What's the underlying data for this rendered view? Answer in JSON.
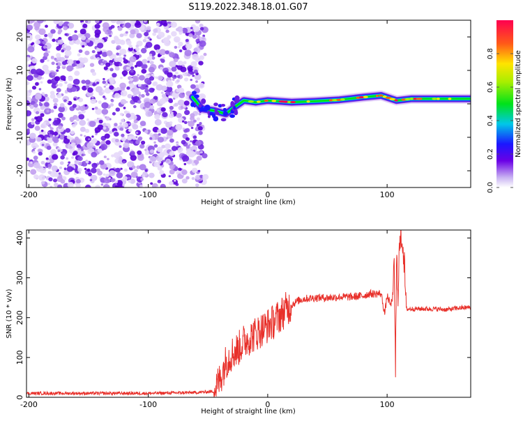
{
  "chart_data": [
    {
      "type": "heatmap",
      "title": "S119.2022.348.18.01.G07",
      "xlabel": "Height of straight line (km)",
      "ylabel": "Frequency (Hz)",
      "xlim": [
        -202,
        170
      ],
      "ylim": [
        -25,
        25
      ],
      "xticks": [
        -200,
        -100,
        0,
        100
      ],
      "yticks": [
        -20,
        -10,
        0,
        10,
        20
      ],
      "colorbar": {
        "label": "Normalized spectral amplitude",
        "range": [
          0,
          1
        ],
        "ticks": [
          0.0,
          0.2,
          0.4,
          0.6,
          0.8
        ]
      },
      "noise_region_x": [
        -202,
        -52
      ],
      "signal_track": [
        {
          "x": -63,
          "f": 2
        },
        {
          "x": -55,
          "f": -1.5
        },
        {
          "x": -45,
          "f": -2
        },
        {
          "x": -35,
          "f": -3
        },
        {
          "x": -28,
          "f": -1
        },
        {
          "x": -20,
          "f": 1
        },
        {
          "x": -10,
          "f": 0.5
        },
        {
          "x": 0,
          "f": 1
        },
        {
          "x": 20,
          "f": 0.5
        },
        {
          "x": 40,
          "f": 0.8
        },
        {
          "x": 60,
          "f": 1.2
        },
        {
          "x": 80,
          "f": 2
        },
        {
          "x": 95,
          "f": 2.5
        },
        {
          "x": 108,
          "f": 1
        },
        {
          "x": 120,
          "f": 1.5
        },
        {
          "x": 140,
          "f": 1.5
        },
        {
          "x": 160,
          "f": 1.5
        },
        {
          "x": 170,
          "f": 1.5
        }
      ]
    },
    {
      "type": "line",
      "xlabel": "Height of straight line (km)",
      "ylabel": "SNR (10 * v/v)",
      "xlim": [
        -202,
        170
      ],
      "ylim": [
        0,
        420
      ],
      "xticks": [
        -200,
        -100,
        0,
        100
      ],
      "yticks": [
        0,
        100,
        200,
        300,
        400
      ],
      "color": "#e8302a",
      "series": [
        {
          "name": "SNR",
          "x": [
            -202,
            -150,
            -100,
            -60,
            -45,
            -40,
            -35,
            -30,
            -25,
            -20,
            -15,
            -10,
            -5,
            0,
            5,
            10,
            15,
            20,
            25,
            30,
            40,
            50,
            60,
            70,
            80,
            85,
            90,
            95,
            98,
            100,
            103,
            105,
            106,
            107,
            108,
            109,
            110,
            112,
            114,
            116,
            120,
            130,
            140,
            150,
            160,
            170
          ],
          "y": [
            10,
            10,
            10,
            12,
            15,
            45,
            90,
            110,
            120,
            140,
            150,
            160,
            170,
            180,
            190,
            205,
            220,
            232,
            242,
            247,
            250,
            250,
            252,
            252,
            255,
            260,
            260,
            260,
            210,
            255,
            230,
            260,
            330,
            60,
            360,
            250,
            360,
            410,
            360,
            222,
            222,
            222,
            222,
            220,
            224,
            226
          ]
        }
      ]
    }
  ]
}
